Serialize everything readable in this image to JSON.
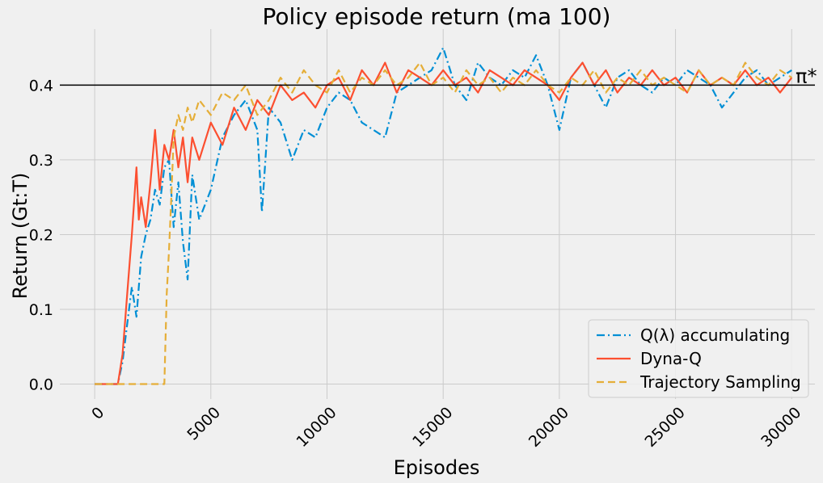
{
  "chart_data": {
    "type": "line",
    "title": "Policy episode return (ma 100)",
    "xlabel": "Episodes",
    "ylabel": "Return (Gt:T)",
    "xlim": [
      -1500,
      31000
    ],
    "ylim": [
      -0.02,
      0.475
    ],
    "x_ticks": [
      0,
      5000,
      10000,
      15000,
      20000,
      25000,
      30000
    ],
    "x_tick_labels": [
      "0",
      "5000",
      "10000",
      "15000",
      "20000",
      "25000",
      "30000"
    ],
    "y_ticks": [
      0.0,
      0.1,
      0.2,
      0.3,
      0.4
    ],
    "y_tick_labels": [
      "0.0",
      "0.1",
      "0.2",
      "0.3",
      "0.4"
    ],
    "grid": true,
    "legend_position": "bottom-right",
    "reference_line": {
      "y": 0.4,
      "label": "π*",
      "color": "#000000"
    },
    "series": [
      {
        "name": "Q(λ) accumulating",
        "color": "#008fd5",
        "style": "dashdot",
        "x": [
          0,
          1000,
          1200,
          1400,
          1600,
          1800,
          2000,
          2200,
          2400,
          2600,
          2800,
          3000,
          3200,
          3400,
          3600,
          3800,
          4000,
          4200,
          4500,
          5000,
          5500,
          6000,
          6500,
          7000,
          7200,
          7500,
          8000,
          8500,
          9000,
          9500,
          10000,
          10500,
          11000,
          11500,
          12000,
          12500,
          13000,
          13500,
          14000,
          14500,
          15000,
          15500,
          16000,
          16500,
          17000,
          17500,
          18000,
          18500,
          19000,
          19500,
          20000,
          20500,
          21000,
          21500,
          22000,
          22500,
          23000,
          23500,
          24000,
          24500,
          25000,
          25500,
          26000,
          26500,
          27000,
          27500,
          28000,
          28500,
          29000,
          29500,
          30000
        ],
        "values": [
          0.0,
          0.0,
          0.03,
          0.08,
          0.13,
          0.09,
          0.17,
          0.2,
          0.22,
          0.26,
          0.24,
          0.29,
          0.3,
          0.21,
          0.27,
          0.19,
          0.14,
          0.28,
          0.22,
          0.26,
          0.33,
          0.36,
          0.38,
          0.34,
          0.23,
          0.37,
          0.35,
          0.3,
          0.34,
          0.33,
          0.37,
          0.39,
          0.38,
          0.35,
          0.34,
          0.33,
          0.39,
          0.4,
          0.41,
          0.42,
          0.45,
          0.4,
          0.38,
          0.43,
          0.41,
          0.4,
          0.42,
          0.41,
          0.44,
          0.4,
          0.34,
          0.41,
          0.43,
          0.4,
          0.37,
          0.41,
          0.42,
          0.4,
          0.39,
          0.41,
          0.4,
          0.42,
          0.41,
          0.4,
          0.37,
          0.39,
          0.41,
          0.42,
          0.4,
          0.41,
          0.42
        ]
      },
      {
        "name": "Dyna-Q",
        "color": "#fc4f30",
        "style": "solid",
        "x": [
          0,
          1000,
          1200,
          1400,
          1600,
          1800,
          1900,
          2000,
          2200,
          2400,
          2600,
          2800,
          3000,
          3200,
          3400,
          3600,
          3800,
          4000,
          4200,
          4500,
          5000,
          5500,
          6000,
          6500,
          7000,
          7500,
          8000,
          8500,
          9000,
          9500,
          10000,
          10500,
          11000,
          11500,
          12000,
          12500,
          13000,
          13500,
          14000,
          14500,
          15000,
          15500,
          16000,
          16500,
          17000,
          17500,
          18000,
          18500,
          19000,
          19500,
          20000,
          20500,
          21000,
          21500,
          22000,
          22500,
          23000,
          23500,
          24000,
          24500,
          25000,
          25500,
          26000,
          26500,
          27000,
          27500,
          28000,
          28500,
          29000,
          29500,
          30000
        ],
        "values": [
          0.0,
          0.0,
          0.04,
          0.12,
          0.2,
          0.29,
          0.22,
          0.25,
          0.21,
          0.27,
          0.34,
          0.26,
          0.32,
          0.3,
          0.34,
          0.29,
          0.33,
          0.27,
          0.33,
          0.3,
          0.35,
          0.32,
          0.37,
          0.34,
          0.38,
          0.36,
          0.4,
          0.38,
          0.39,
          0.37,
          0.4,
          0.41,
          0.38,
          0.42,
          0.4,
          0.43,
          0.39,
          0.42,
          0.41,
          0.4,
          0.42,
          0.4,
          0.41,
          0.39,
          0.42,
          0.41,
          0.4,
          0.42,
          0.41,
          0.4,
          0.38,
          0.41,
          0.43,
          0.4,
          0.42,
          0.39,
          0.41,
          0.4,
          0.42,
          0.4,
          0.41,
          0.39,
          0.42,
          0.4,
          0.41,
          0.4,
          0.42,
          0.4,
          0.41,
          0.39,
          0.41
        ]
      },
      {
        "name": "Trajectory Sampling",
        "color": "#e5ae38",
        "style": "dashed",
        "x": [
          0,
          2500,
          3000,
          3100,
          3200,
          3300,
          3400,
          3600,
          3800,
          4000,
          4200,
          4500,
          5000,
          5500,
          6000,
          6500,
          7000,
          7500,
          8000,
          8500,
          9000,
          9500,
          10000,
          10500,
          11000,
          11500,
          12000,
          12500,
          13000,
          13500,
          14000,
          14500,
          15000,
          15500,
          16000,
          16500,
          17000,
          17500,
          18000,
          18500,
          19000,
          19500,
          20000,
          20500,
          21000,
          21500,
          22000,
          22500,
          23000,
          23500,
          24000,
          24500,
          25000,
          25500,
          26000,
          26500,
          27000,
          27500,
          28000,
          28500,
          29000,
          29500,
          30000
        ],
        "values": [
          0.0,
          0.0,
          0.0,
          0.12,
          0.18,
          0.25,
          0.33,
          0.36,
          0.34,
          0.37,
          0.35,
          0.38,
          0.36,
          0.39,
          0.38,
          0.4,
          0.36,
          0.38,
          0.41,
          0.39,
          0.42,
          0.4,
          0.39,
          0.42,
          0.39,
          0.41,
          0.4,
          0.42,
          0.4,
          0.41,
          0.43,
          0.4,
          0.41,
          0.39,
          0.42,
          0.4,
          0.41,
          0.39,
          0.41,
          0.4,
          0.42,
          0.4,
          0.39,
          0.41,
          0.4,
          0.42,
          0.39,
          0.41,
          0.4,
          0.42,
          0.4,
          0.41,
          0.4,
          0.39,
          0.42,
          0.4,
          0.41,
          0.4,
          0.43,
          0.41,
          0.4,
          0.42,
          0.41
        ]
      }
    ]
  }
}
